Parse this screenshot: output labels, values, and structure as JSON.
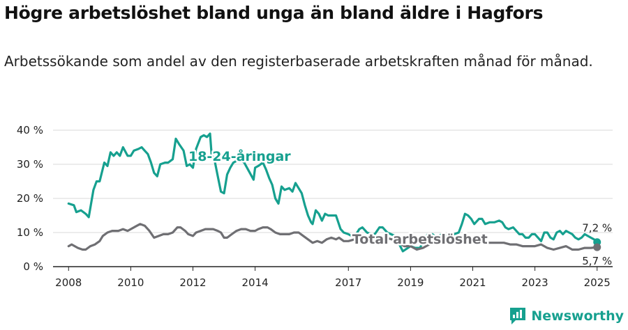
{
  "title": "Högre arbetslöshet bland unga än bland äldre i Hagfors",
  "subtitle": "Arbetssökande som andel av den registerbaserade arbetskraften månad för månad.",
  "brand": {
    "name": "Newsworthy"
  },
  "colors": {
    "youth": "#16a08f",
    "total": "#6f6f73",
    "grid": "#dadada",
    "axis": "#222222"
  },
  "chart_data": {
    "type": "line",
    "xlim": [
      2007.5,
      2025.5
    ],
    "ylim": [
      0,
      40
    ],
    "ylabel": "",
    "xlabel": "",
    "grid": "horizontal",
    "y_ticks": [
      {
        "value": 0,
        "label": "0 %"
      },
      {
        "value": 10,
        "label": "10 %"
      },
      {
        "value": 20,
        "label": "20 %"
      },
      {
        "value": 30,
        "label": "30 %"
      },
      {
        "value": 40,
        "label": "40 %"
      }
    ],
    "x_ticks": [
      {
        "value": 2008,
        "label": "2008"
      },
      {
        "value": 2010,
        "label": "2010"
      },
      {
        "value": 2012,
        "label": "2012"
      },
      {
        "value": 2014,
        "label": "2014"
      },
      {
        "value": 2017,
        "label": "2017"
      },
      {
        "value": 2019,
        "label": "2019"
      },
      {
        "value": 2021,
        "label": "2021"
      },
      {
        "value": 2023,
        "label": "2023"
      },
      {
        "value": 2025,
        "label": "2025"
      }
    ],
    "series": [
      {
        "name": "18-24-åringar",
        "color_key": "youth",
        "end_label": "7,2 %",
        "points": [
          [
            2008.0,
            18.5
          ],
          [
            2008.17,
            18.0
          ],
          [
            2008.25,
            16.0
          ],
          [
            2008.4,
            16.5
          ],
          [
            2008.55,
            15.5
          ],
          [
            2008.65,
            14.5
          ],
          [
            2008.8,
            22.5
          ],
          [
            2008.9,
            25.0
          ],
          [
            2009.0,
            25.0
          ],
          [
            2009.15,
            30.5
          ],
          [
            2009.25,
            29.5
          ],
          [
            2009.35,
            33.5
          ],
          [
            2009.45,
            32.5
          ],
          [
            2009.55,
            33.5
          ],
          [
            2009.65,
            32.5
          ],
          [
            2009.75,
            35.0
          ],
          [
            2009.9,
            32.5
          ],
          [
            2010.0,
            32.5
          ],
          [
            2010.1,
            34.0
          ],
          [
            2010.25,
            34.5
          ],
          [
            2010.35,
            35.0
          ],
          [
            2010.45,
            34.0
          ],
          [
            2010.55,
            33.0
          ],
          [
            2010.65,
            30.5
          ],
          [
            2010.75,
            27.5
          ],
          [
            2010.85,
            26.5
          ],
          [
            2010.95,
            30.0
          ],
          [
            2011.1,
            30.5
          ],
          [
            2011.2,
            30.5
          ],
          [
            2011.35,
            31.5
          ],
          [
            2011.45,
            37.5
          ],
          [
            2011.55,
            36.0
          ],
          [
            2011.7,
            34.0
          ],
          [
            2011.8,
            29.5
          ],
          [
            2011.9,
            30.0
          ],
          [
            2012.0,
            29.0
          ],
          [
            2012.1,
            34.5
          ],
          [
            2012.25,
            38.0
          ],
          [
            2012.35,
            38.5
          ],
          [
            2012.45,
            38.0
          ],
          [
            2012.55,
            39.0
          ],
          [
            2012.6,
            33.0
          ],
          [
            2012.7,
            31.0
          ],
          [
            2012.8,
            26.5
          ],
          [
            2012.9,
            22.0
          ],
          [
            2013.0,
            21.5
          ],
          [
            2013.1,
            27.0
          ],
          [
            2013.2,
            29.0
          ],
          [
            2013.3,
            30.5
          ],
          [
            2013.5,
            31.5
          ],
          [
            2013.65,
            30.5
          ],
          [
            2013.8,
            28.0
          ],
          [
            2013.95,
            25.5
          ],
          [
            2014.0,
            29.0
          ],
          [
            2014.1,
            29.5
          ],
          [
            2014.25,
            30.5
          ],
          [
            2014.35,
            28.5
          ],
          [
            2014.45,
            26.0
          ],
          [
            2014.55,
            24.0
          ],
          [
            2014.65,
            20.0
          ],
          [
            2014.75,
            18.5
          ],
          [
            2014.85,
            23.5
          ],
          [
            2014.95,
            22.5
          ],
          [
            2015.1,
            23.0
          ],
          [
            2015.2,
            22.0
          ],
          [
            2015.3,
            24.5
          ],
          [
            2015.4,
            23.0
          ],
          [
            2015.5,
            21.5
          ],
          [
            2015.6,
            18.0
          ],
          [
            2015.7,
            15.0
          ],
          [
            2015.8,
            13.0
          ],
          [
            2015.85,
            12.5
          ],
          [
            2015.95,
            16.5
          ],
          [
            2016.05,
            15.5
          ],
          [
            2016.15,
            13.5
          ],
          [
            2016.25,
            15.5
          ],
          [
            2016.35,
            15.0
          ],
          [
            2016.5,
            15.0
          ],
          [
            2016.6,
            15.0
          ],
          [
            2016.75,
            11.0
          ],
          [
            2016.85,
            10.0
          ],
          [
            2017.0,
            9.5
          ],
          [
            2017.1,
            9.0
          ],
          [
            2017.25,
            9.5
          ],
          [
            2017.35,
            11.0
          ],
          [
            2017.45,
            11.5
          ],
          [
            2017.6,
            10.0
          ],
          [
            2017.75,
            9.5
          ],
          [
            2017.85,
            9.5
          ],
          [
            2018.0,
            11.5
          ],
          [
            2018.1,
            11.5
          ],
          [
            2018.25,
            10.0
          ],
          [
            2018.5,
            9.0
          ],
          [
            2018.75,
            4.5
          ],
          [
            2019.0,
            6.0
          ],
          [
            2019.15,
            5.5
          ],
          [
            2019.3,
            5.5
          ],
          [
            2019.45,
            8.0
          ],
          [
            2019.55,
            9.5
          ],
          [
            2019.7,
            9.5
          ],
          [
            2019.85,
            8.5
          ],
          [
            2020.0,
            9.5
          ],
          [
            2020.15,
            9.0
          ],
          [
            2020.3,
            9.5
          ],
          [
            2020.4,
            9.5
          ],
          [
            2020.55,
            10.0
          ],
          [
            2020.65,
            12.5
          ],
          [
            2020.75,
            15.5
          ],
          [
            2020.85,
            15.0
          ],
          [
            2020.95,
            14.0
          ],
          [
            2021.05,
            12.5
          ],
          [
            2021.2,
            14.0
          ],
          [
            2021.3,
            14.0
          ],
          [
            2021.4,
            12.5
          ],
          [
            2021.55,
            13.0
          ],
          [
            2021.7,
            13.0
          ],
          [
            2021.85,
            13.5
          ],
          [
            2021.95,
            13.0
          ],
          [
            2022.05,
            11.5
          ],
          [
            2022.15,
            11.0
          ],
          [
            2022.3,
            11.5
          ],
          [
            2022.4,
            10.5
          ],
          [
            2022.5,
            9.5
          ],
          [
            2022.6,
            9.5
          ],
          [
            2022.7,
            8.5
          ],
          [
            2022.8,
            8.5
          ],
          [
            2022.9,
            9.5
          ],
          [
            2023.0,
            9.5
          ],
          [
            2023.1,
            8.5
          ],
          [
            2023.2,
            7.5
          ],
          [
            2023.3,
            10.0
          ],
          [
            2023.4,
            10.0
          ],
          [
            2023.5,
            8.5
          ],
          [
            2023.6,
            8.0
          ],
          [
            2023.7,
            10.0
          ],
          [
            2023.8,
            10.5
          ],
          [
            2023.9,
            9.5
          ],
          [
            2024.0,
            10.5
          ],
          [
            2024.1,
            10.0
          ],
          [
            2024.2,
            9.5
          ],
          [
            2024.3,
            8.5
          ],
          [
            2024.4,
            8.0
          ],
          [
            2024.5,
            8.5
          ],
          [
            2024.6,
            9.5
          ],
          [
            2024.7,
            9.0
          ],
          [
            2024.8,
            8.5
          ],
          [
            2024.9,
            8.0
          ],
          [
            2025.0,
            7.2
          ]
        ]
      },
      {
        "name": "Total arbetslöshet",
        "color_key": "total",
        "end_label": "5,7 %",
        "points": [
          [
            2008.0,
            6.0
          ],
          [
            2008.1,
            6.5
          ],
          [
            2008.3,
            5.5
          ],
          [
            2008.45,
            5.0
          ],
          [
            2008.55,
            5.0
          ],
          [
            2008.7,
            6.0
          ],
          [
            2008.85,
            6.5
          ],
          [
            2009.0,
            7.5
          ],
          [
            2009.1,
            9.0
          ],
          [
            2009.25,
            10.0
          ],
          [
            2009.4,
            10.5
          ],
          [
            2009.6,
            10.5
          ],
          [
            2009.75,
            11.0
          ],
          [
            2009.9,
            10.5
          ],
          [
            2010.0,
            11.0
          ],
          [
            2010.2,
            12.0
          ],
          [
            2010.3,
            12.5
          ],
          [
            2010.45,
            12.0
          ],
          [
            2010.6,
            10.5
          ],
          [
            2010.75,
            8.5
          ],
          [
            2010.9,
            9.0
          ],
          [
            2011.05,
            9.5
          ],
          [
            2011.2,
            9.5
          ],
          [
            2011.35,
            10.0
          ],
          [
            2011.5,
            11.5
          ],
          [
            2011.6,
            11.5
          ],
          [
            2011.75,
            10.5
          ],
          [
            2011.85,
            9.5
          ],
          [
            2012.0,
            9.0
          ],
          [
            2012.1,
            10.0
          ],
          [
            2012.25,
            10.5
          ],
          [
            2012.4,
            11.0
          ],
          [
            2012.5,
            11.0
          ],
          [
            2012.65,
            11.0
          ],
          [
            2012.8,
            10.5
          ],
          [
            2012.9,
            10.0
          ],
          [
            2013.0,
            8.5
          ],
          [
            2013.1,
            8.5
          ],
          [
            2013.25,
            9.5
          ],
          [
            2013.4,
            10.5
          ],
          [
            2013.55,
            11.0
          ],
          [
            2013.7,
            11.0
          ],
          [
            2013.85,
            10.5
          ],
          [
            2014.0,
            10.5
          ],
          [
            2014.1,
            11.0
          ],
          [
            2014.25,
            11.5
          ],
          [
            2014.4,
            11.5
          ],
          [
            2014.5,
            11.0
          ],
          [
            2014.65,
            10.0
          ],
          [
            2014.8,
            9.5
          ],
          [
            2014.95,
            9.5
          ],
          [
            2015.1,
            9.5
          ],
          [
            2015.25,
            10.0
          ],
          [
            2015.4,
            10.0
          ],
          [
            2015.55,
            9.0
          ],
          [
            2015.7,
            8.0
          ],
          [
            2015.85,
            7.0
          ],
          [
            2016.0,
            7.5
          ],
          [
            2016.15,
            7.0
          ],
          [
            2016.3,
            8.0
          ],
          [
            2016.45,
            8.5
          ],
          [
            2016.6,
            8.0
          ],
          [
            2016.7,
            8.5
          ],
          [
            2016.85,
            7.5
          ],
          [
            2017.0,
            7.5
          ],
          [
            2017.2,
            8.0
          ],
          [
            2017.4,
            8.5
          ],
          [
            2017.55,
            8.5
          ],
          [
            2017.75,
            7.5
          ],
          [
            2018.0,
            8.0
          ],
          [
            2018.2,
            8.5
          ],
          [
            2018.4,
            8.0
          ],
          [
            2018.6,
            7.0
          ],
          [
            2018.8,
            6.0
          ],
          [
            2019.0,
            6.0
          ],
          [
            2019.2,
            5.0
          ],
          [
            2019.4,
            5.5
          ],
          [
            2019.6,
            6.5
          ],
          [
            2019.8,
            7.0
          ],
          [
            2020.0,
            7.5
          ],
          [
            2020.2,
            8.0
          ],
          [
            2020.4,
            8.5
          ],
          [
            2020.6,
            8.5
          ],
          [
            2020.8,
            8.0
          ],
          [
            2021.0,
            7.5
          ],
          [
            2021.2,
            7.5
          ],
          [
            2021.4,
            7.0
          ],
          [
            2021.6,
            7.0
          ],
          [
            2021.8,
            7.0
          ],
          [
            2022.0,
            7.0
          ],
          [
            2022.2,
            6.5
          ],
          [
            2022.4,
            6.5
          ],
          [
            2022.6,
            6.0
          ],
          [
            2022.8,
            6.0
          ],
          [
            2023.0,
            6.0
          ],
          [
            2023.2,
            6.5
          ],
          [
            2023.4,
            5.5
          ],
          [
            2023.6,
            5.0
          ],
          [
            2023.8,
            5.5
          ],
          [
            2024.0,
            6.0
          ],
          [
            2024.2,
            5.0
          ],
          [
            2024.4,
            5.0
          ],
          [
            2024.6,
            5.5
          ],
          [
            2024.8,
            5.5
          ],
          [
            2025.0,
            5.7
          ]
        ]
      }
    ]
  }
}
